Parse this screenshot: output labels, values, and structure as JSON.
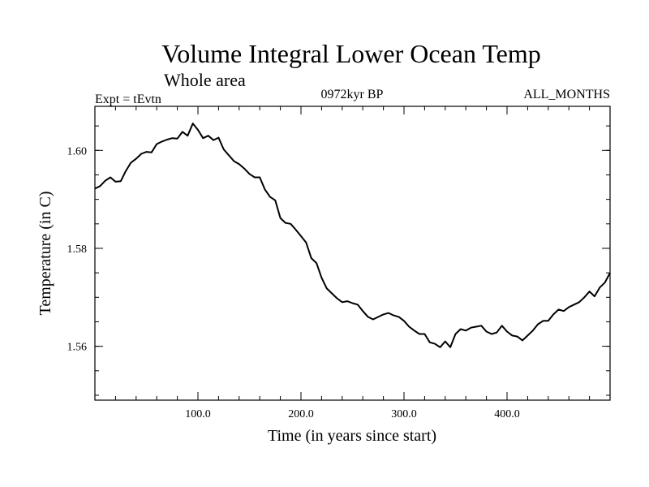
{
  "chart_data": {
    "type": "line",
    "title": "Volume Integral Lower Ocean Temp",
    "subtitle": "Whole area",
    "experiment_label": "Expt = tEvtn",
    "center_label": "0972kyr BP",
    "right_label": "ALL_MONTHS",
    "xlabel": "Time (in years since start)",
    "ylabel": "Temperature (in C)",
    "xlim": [
      0,
      500
    ],
    "ylim": [
      1.549,
      1.609
    ],
    "x_ticks": [
      {
        "value": 100,
        "label": "100.0"
      },
      {
        "value": 200,
        "label": "200.0"
      },
      {
        "value": 300,
        "label": "300.0"
      },
      {
        "value": 400,
        "label": "400.0"
      }
    ],
    "y_ticks": [
      {
        "value": 1.56,
        "label": "1.56"
      },
      {
        "value": 1.58,
        "label": "1.58"
      },
      {
        "value": 1.6,
        "label": "1.60"
      }
    ],
    "x_minor_step": 20,
    "y_minor_step": 0.005,
    "series": [
      {
        "name": "Volume Integral Lower Ocean Temp",
        "color": "#000000",
        "x": [
          0,
          5,
          10,
          15,
          20,
          25,
          30,
          35,
          40,
          45,
          50,
          55,
          60,
          65,
          70,
          75,
          80,
          85,
          90,
          95,
          100,
          105,
          110,
          115,
          120,
          125,
          130,
          135,
          140,
          145,
          150,
          155,
          160,
          165,
          170,
          175,
          180,
          185,
          190,
          195,
          200,
          205,
          210,
          215,
          220,
          225,
          230,
          235,
          240,
          245,
          250,
          255,
          260,
          265,
          270,
          275,
          280,
          285,
          290,
          295,
          300,
          305,
          310,
          315,
          320,
          325,
          330,
          335,
          340,
          345,
          350,
          355,
          360,
          365,
          370,
          375,
          380,
          385,
          390,
          395,
          400,
          405,
          410,
          415,
          420,
          425,
          430,
          435,
          440,
          445,
          450,
          455,
          460,
          465,
          470,
          475,
          480,
          485,
          490,
          495,
          500
        ],
        "y": [
          1.5922,
          1.5927,
          1.5938,
          1.5945,
          1.5936,
          1.5937,
          1.5958,
          1.5975,
          1.5983,
          1.5993,
          1.5997,
          1.5996,
          1.6013,
          1.6018,
          1.6022,
          1.6025,
          1.6024,
          1.6038,
          1.603,
          1.6055,
          1.6042,
          1.6025,
          1.603,
          1.6021,
          1.6026,
          1.6002,
          1.599,
          1.5978,
          1.5972,
          1.5963,
          1.5952,
          1.5945,
          1.5945,
          1.592,
          1.5905,
          1.5898,
          1.5862,
          1.5852,
          1.585,
          1.5838,
          1.5825,
          1.5812,
          1.578,
          1.577,
          1.574,
          1.5718,
          1.5708,
          1.5698,
          1.569,
          1.5692,
          1.5688,
          1.5685,
          1.5672,
          1.566,
          1.5655,
          1.566,
          1.5665,
          1.5668,
          1.5663,
          1.566,
          1.5652,
          1.564,
          1.5632,
          1.5625,
          1.5625,
          1.5608,
          1.5605,
          1.5598,
          1.561,
          1.5598,
          1.5625,
          1.5635,
          1.5632,
          1.5638,
          1.564,
          1.5642,
          1.563,
          1.5625,
          1.5628,
          1.5642,
          1.563,
          1.5622,
          1.562,
          1.5612,
          1.5622,
          1.5632,
          1.5645,
          1.5652,
          1.5652,
          1.5665,
          1.5675,
          1.5672,
          1.568,
          1.5685,
          1.569,
          1.57,
          1.5712,
          1.5702,
          1.572,
          1.573,
          1.575
        ]
      }
    ]
  }
}
